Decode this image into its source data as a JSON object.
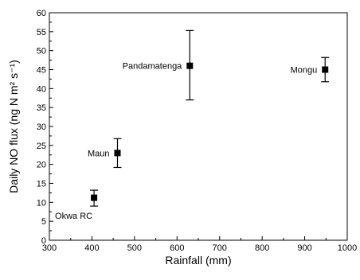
{
  "chart_data": {
    "type": "scatter",
    "title": "",
    "xlabel": "Rainfall (mm)",
    "ylabel": "Daily NO flux (ng N m² s⁻¹)",
    "xlim": [
      300,
      1000
    ],
    "ylim": [
      0,
      60
    ],
    "x_ticks": [
      300,
      400,
      500,
      600,
      700,
      800,
      900,
      1000
    ],
    "y_ticks": [
      0,
      5,
      10,
      15,
      20,
      25,
      30,
      35,
      40,
      45,
      50,
      55,
      60
    ],
    "grid": false,
    "points": [
      {
        "label": "Okwa RC",
        "x": 405,
        "y": 11.2,
        "err_low": 9.0,
        "err_high": 13.2,
        "label_pos": "below-left"
      },
      {
        "label": "Maun",
        "x": 460,
        "y": 23.0,
        "err_low": 19.2,
        "err_high": 26.8,
        "label_pos": "left"
      },
      {
        "label": "Pandamatenga",
        "x": 630,
        "y": 46.0,
        "err_low": 37.0,
        "err_high": 55.3,
        "label_pos": "left"
      },
      {
        "label": "Mongu",
        "x": 948,
        "y": 45.0,
        "err_low": 41.8,
        "err_high": 48.2,
        "label_pos": "left"
      }
    ]
  }
}
